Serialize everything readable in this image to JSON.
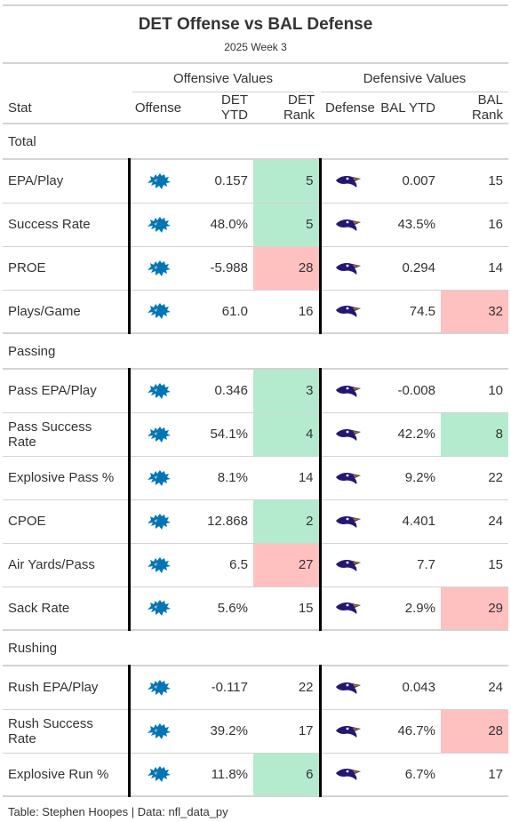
{
  "header": {
    "title": "DET Offense vs BAL Defense",
    "subtitle": "2025 Week 3"
  },
  "spanners": {
    "offense": "Offensive Values",
    "defense": "Defensive Values"
  },
  "columns": [
    "Stat",
    "Offense",
    "DET YTD",
    "DET Rank",
    "Defense",
    "BAL YTD",
    "BAL Rank"
  ],
  "icons": {
    "offense": "lions-logo-icon",
    "defense": "ravens-logo-icon"
  },
  "colors": {
    "good": "#b4ebcf",
    "bad": "#ffc0c0",
    "lions_blue": "#0076b6",
    "ravens_purple": "#241773"
  },
  "groups": [
    {
      "label": "Total",
      "rows": [
        {
          "stat": "EPA/Play",
          "det_ytd": "0.157",
          "det_rank": "5",
          "det_rank_tone": "good",
          "bal_ytd": "0.007",
          "bal_rank": "15",
          "bal_rank_tone": ""
        },
        {
          "stat": "Success Rate",
          "det_ytd": "48.0%",
          "det_rank": "5",
          "det_rank_tone": "good",
          "bal_ytd": "43.5%",
          "bal_rank": "16",
          "bal_rank_tone": ""
        },
        {
          "stat": "PROE",
          "det_ytd": "-5.988",
          "det_rank": "28",
          "det_rank_tone": "bad",
          "bal_ytd": "0.294",
          "bal_rank": "14",
          "bal_rank_tone": ""
        },
        {
          "stat": "Plays/Game",
          "det_ytd": "61.0",
          "det_rank": "16",
          "det_rank_tone": "",
          "bal_ytd": "74.5",
          "bal_rank": "32",
          "bal_rank_tone": "bad"
        }
      ]
    },
    {
      "label": "Passing",
      "rows": [
        {
          "stat": "Pass EPA/Play",
          "det_ytd": "0.346",
          "det_rank": "3",
          "det_rank_tone": "good",
          "bal_ytd": "-0.008",
          "bal_rank": "10",
          "bal_rank_tone": ""
        },
        {
          "stat": "Pass Success Rate",
          "det_ytd": "54.1%",
          "det_rank": "4",
          "det_rank_tone": "good",
          "bal_ytd": "42.2%",
          "bal_rank": "8",
          "bal_rank_tone": "good"
        },
        {
          "stat": "Explosive Pass %",
          "det_ytd": "8.1%",
          "det_rank": "14",
          "det_rank_tone": "",
          "bal_ytd": "9.2%",
          "bal_rank": "22",
          "bal_rank_tone": ""
        },
        {
          "stat": "CPOE",
          "det_ytd": "12.868",
          "det_rank": "2",
          "det_rank_tone": "good",
          "bal_ytd": "4.401",
          "bal_rank": "24",
          "bal_rank_tone": ""
        },
        {
          "stat": "Air Yards/Pass",
          "det_ytd": "6.5",
          "det_rank": "27",
          "det_rank_tone": "bad",
          "bal_ytd": "7.7",
          "bal_rank": "15",
          "bal_rank_tone": ""
        },
        {
          "stat": "Sack Rate",
          "det_ytd": "5.6%",
          "det_rank": "15",
          "det_rank_tone": "",
          "bal_ytd": "2.9%",
          "bal_rank": "29",
          "bal_rank_tone": "bad"
        }
      ]
    },
    {
      "label": "Rushing",
      "rows": [
        {
          "stat": "Rush EPA/Play",
          "det_ytd": "-0.117",
          "det_rank": "22",
          "det_rank_tone": "",
          "bal_ytd": "0.043",
          "bal_rank": "24",
          "bal_rank_tone": ""
        },
        {
          "stat": "Rush Success Rate",
          "det_ytd": "39.2%",
          "det_rank": "17",
          "det_rank_tone": "",
          "bal_ytd": "46.7%",
          "bal_rank": "28",
          "bal_rank_tone": "bad"
        },
        {
          "stat": "Explosive Run %",
          "det_ytd": "11.8%",
          "det_rank": "6",
          "det_rank_tone": "good",
          "bal_ytd": "6.7%",
          "bal_rank": "17",
          "bal_rank_tone": ""
        }
      ]
    }
  ],
  "footer": "Table: Stephen Hoopes | Data: nfl_data_py"
}
